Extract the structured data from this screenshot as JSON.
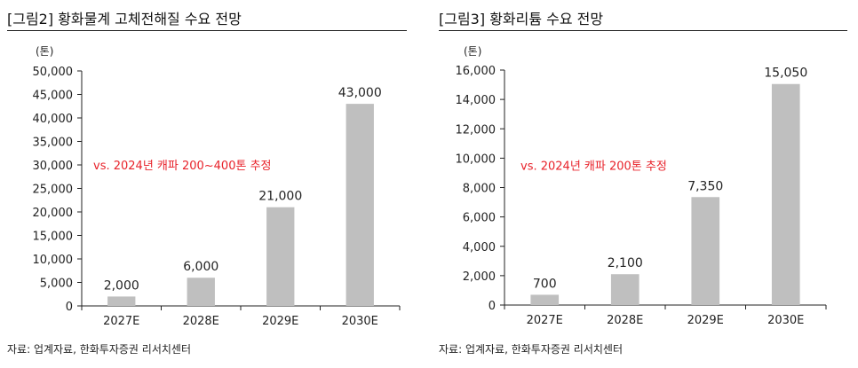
{
  "charts": [
    {
      "title": "[그림2]  황화물계 고체전해질 수요 전망",
      "source": "자료: 업계자료, 한화투자증권 리서치센터"
    },
    {
      "title": "[그림3]  황화리튬 수요 전망",
      "source": "자료: 업계자료, 한화투자증권 리서치센터"
    }
  ],
  "colors": {
    "bar": "#bfbfbf",
    "annotation": "#e8222a",
    "axis": "#222222"
  },
  "chart_data": [
    {
      "type": "bar",
      "title": "[그림2]  황화물계 고체전해질 수요 전망",
      "ylabel": "(톤)",
      "categories": [
        "2027E",
        "2028E",
        "2029E",
        "2030E"
      ],
      "values": [
        2000,
        6000,
        21000,
        43000
      ],
      "value_labels": [
        "2,000",
        "6,000",
        "21,000",
        "43,000"
      ],
      "ylim": [
        0,
        50000
      ],
      "yticks": [
        0,
        5000,
        10000,
        15000,
        20000,
        25000,
        30000,
        35000,
        40000,
        45000,
        50000
      ],
      "ytick_labels": [
        "0",
        "5,000",
        "10,000",
        "15,000",
        "20,000",
        "25,000",
        "30,000",
        "35,000",
        "40,000",
        "45,000",
        "50,000"
      ],
      "annotation": "vs. 2024년 캐파 200~400톤 추정",
      "annotation_y": 30000,
      "grid": false,
      "legend": "none"
    },
    {
      "type": "bar",
      "title": "[그림3]  황화리튬 수요 전망",
      "ylabel": "(톤)",
      "categories": [
        "2027E",
        "2028E",
        "2029E",
        "2030E"
      ],
      "values": [
        700,
        2100,
        7350,
        15050
      ],
      "value_labels": [
        "700",
        "2,100",
        "7,350",
        "15,050"
      ],
      "ylim": [
        0,
        16000
      ],
      "yticks": [
        0,
        2000,
        4000,
        6000,
        8000,
        10000,
        12000,
        14000,
        16000
      ],
      "ytick_labels": [
        "0",
        "2,000",
        "4,000",
        "6,000",
        "8,000",
        "10,000",
        "12,000",
        "14,000",
        "16,000"
      ],
      "annotation": "vs. 2024년 캐파 200톤 추정",
      "annotation_y": 9500,
      "grid": false,
      "legend": "none"
    }
  ]
}
